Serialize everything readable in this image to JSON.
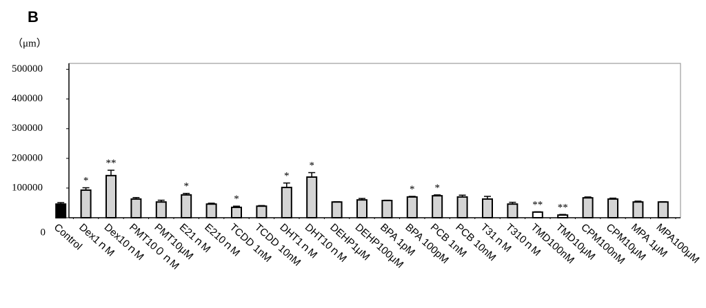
{
  "chart_data": {
    "type": "bar",
    "panel_label": "B",
    "y_label": "（μm）",
    "categories": [
      "Control",
      "Dex1ｎM",
      "Dex10ｎM",
      "PMT10０ｎM",
      "PMT10μM",
      "E21ｎM",
      "E210ｎM",
      "TCDD 1nM",
      "TCDD 10nM",
      "DHT1ｎM",
      "DHT10ｎM",
      "DEHP1μM",
      "DEHP100μM",
      "BPA 1pM",
      "BPA 100pM",
      "PCB 1nM",
      "PCB 10nM",
      "T31ｎM",
      "T310ｎM",
      "TMD100nM",
      "TMD10μM",
      "CPM100nM",
      "CPM10μM",
      "MPA 1μM",
      "MPA100μM"
    ],
    "values": [
      46000,
      93000,
      142000,
      63000,
      53000,
      77000,
      46000,
      35000,
      39000,
      102000,
      137000,
      53000,
      60000,
      58000,
      70000,
      74000,
      70000,
      63000,
      46000,
      19000,
      9000,
      67000,
      63000,
      53000,
      53000
    ],
    "errors": [
      5000,
      8000,
      18000,
      5000,
      6000,
      5000,
      3000,
      4000,
      2000,
      15000,
      15000,
      1000,
      5000,
      1000,
      2000,
      3000,
      6000,
      9000,
      6000,
      1000,
      2000,
      3000,
      3000,
      3000,
      1000
    ],
    "annotations": [
      null,
      "*",
      "**",
      null,
      null,
      "*",
      null,
      "*",
      null,
      "*",
      "*",
      null,
      null,
      null,
      "*",
      "*",
      null,
      null,
      null,
      "**",
      "**",
      null,
      null,
      null,
      null
    ],
    "colors": [
      "#000000",
      "#d4d4d4",
      "#d4d4d4",
      "#d4d4d4",
      "#d4d4d4",
      "#d4d4d4",
      "#d4d4d4",
      "#d4d4d4",
      "#d4d4d4",
      "#d4d4d4",
      "#d4d4d4",
      "#d4d4d4",
      "#d4d4d4",
      "#d4d4d4",
      "#d4d4d4",
      "#d4d4d4",
      "#d4d4d4",
      "#d4d4d4",
      "#d4d4d4",
      "#ffffff",
      "#ffffff",
      "#d4d4d4",
      "#d4d4d4",
      "#d4d4d4",
      "#d4d4d4"
    ],
    "ylim": [
      0,
      520000
    ],
    "yticks": [
      0,
      100000,
      200000,
      300000,
      400000,
      500000
    ],
    "grid": false
  }
}
